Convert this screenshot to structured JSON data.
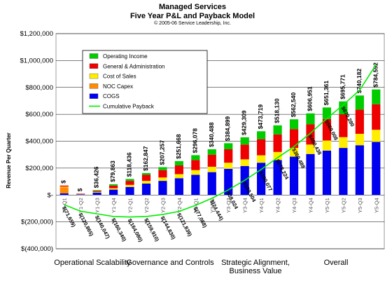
{
  "chart_data": {
    "type": "bar",
    "title": "Managed Services",
    "subtitle": "Five Year P&L and Payback Model",
    "copyright": "© 2005-06 Service Leadership, Inc.",
    "ylabel": "Revenue Per Quarter",
    "ylim": [
      -400000,
      1200000
    ],
    "yticks": [
      -400000,
      -200000,
      0,
      200000,
      400000,
      600000,
      800000,
      1000000,
      1200000
    ],
    "ytick_labels": [
      "$(400,000)",
      "$(200,000)",
      "$-",
      "$200,000",
      "$400,000",
      "$600,000",
      "$800,000",
      "$1,000,000",
      "$1,200,000"
    ],
    "categories": [
      "Y1-Q1",
      "Y1-Q2",
      "Y1-Q3",
      "Y1-Q4",
      "Y2-Q1",
      "Y2-Q2",
      "Y2-Q3",
      "Y2-Q4",
      "Y3-Q1",
      "Y3-Q2",
      "Y3-Q3",
      "Y3-Q4",
      "Y4-Q1",
      "Y4-Q2",
      "Y4-Q3",
      "Y4-Q4",
      "Y5-Q1",
      "Y5-Q2",
      "Y5-Q3",
      "Y5-Q4"
    ],
    "total_labels": [
      "$",
      "$",
      "$36,426",
      "$79,863",
      "$118,436",
      "$162,847",
      "$207,257",
      "$251,668",
      "$296,078",
      "$340,488",
      "$384,899",
      "$429,309",
      "$473,719",
      "$518,130",
      "$562,540",
      "$606,951",
      "$651,361",
      "$695,771",
      "$740,182",
      "$784,592"
    ],
    "payback_labels": [
      "$(71,659)",
      "$(120,865)",
      "$(140,047)",
      "$(160,340)",
      "$(164,080)",
      "$(159,910)",
      "$(144,830)",
      "$(121,839)",
      "$(77,088)",
      "$(24,444)",
      "$38,024",
      "$109,504",
      "$190,077",
      "$278,224",
      "$360,488",
      "$460,438",
      "$569,008",
      "$670,280",
      "",
      ""
    ],
    "series": [
      {
        "name": "COGS",
        "color": "#0000ee",
        "values": [
          12000,
          5000,
          18000,
          40000,
          60000,
          85000,
          105000,
          125000,
          150000,
          170000,
          195000,
          215000,
          240000,
          260000,
          285000,
          305000,
          330000,
          350000,
          370000,
          395000
        ]
      },
      {
        "name": "NOC Capex",
        "color": "#ff8c00",
        "values": [
          45000,
          0,
          0,
          0,
          0,
          0,
          0,
          0,
          0,
          0,
          0,
          0,
          0,
          0,
          0,
          0,
          0,
          0,
          0,
          0
        ]
      },
      {
        "name": "Cost of Sales",
        "color": "#ffee00",
        "values": [
          5000,
          2000,
          5000,
          10000,
          15000,
          20000,
          25000,
          30000,
          35000,
          40000,
          45000,
          50000,
          55000,
          60000,
          65000,
          70000,
          75000,
          80000,
          85000,
          90000
        ]
      },
      {
        "name": "General & Administration",
        "color": "#ee0000",
        "values": [
          8000,
          3000,
          8000,
          20000,
          30000,
          45000,
          55000,
          65000,
          75000,
          90000,
          100000,
          110000,
          120000,
          130000,
          140000,
          150000,
          160000,
          170000,
          180000,
          190000
        ]
      },
      {
        "name": "Operating Income",
        "color": "#00cc00",
        "values": [
          0,
          0,
          5000,
          10000,
          14000,
          13000,
          22000,
          32000,
          36000,
          40000,
          45000,
          54000,
          59000,
          68000,
          73000,
          82000,
          86000,
          96000,
          105000,
          110000
        ]
      }
    ],
    "payback": {
      "name": "Cumulative Payback",
      "color": "#00ee00",
      "values": [
        -72000,
        -121000,
        -140000,
        -160000,
        -164000,
        -160000,
        -145000,
        -122000,
        -77000,
        -24000,
        38000,
        110000,
        190000,
        278000,
        360000,
        460000,
        569000,
        670000,
        780000,
        970000
      ]
    },
    "legend_order": [
      "Operating Income",
      "General & Administration",
      "Cost of Sales",
      "NOC Capex",
      "COGS",
      "Cumulative Payback"
    ],
    "legend_position": "top-left",
    "grid": true
  },
  "overlay_labels": [
    "Operational Scalability",
    "Governance and Controls",
    "Strategic Alignment, Business Value",
    "Overall"
  ]
}
